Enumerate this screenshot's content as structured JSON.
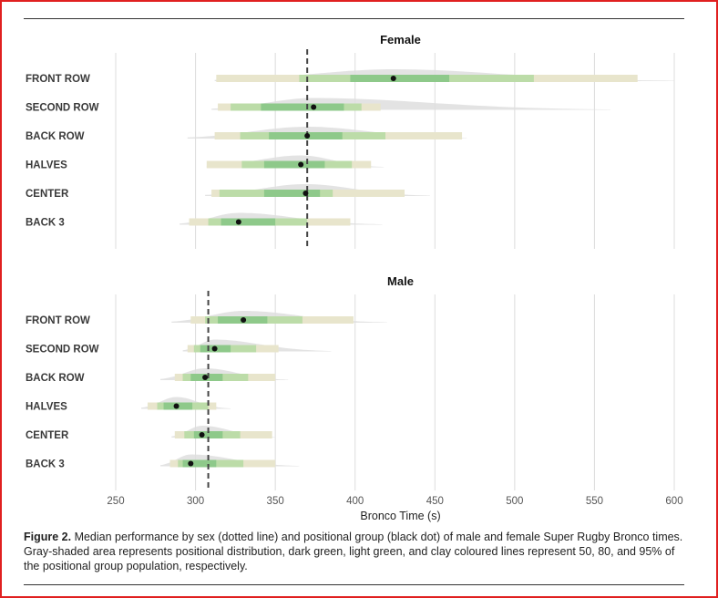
{
  "colors": {
    "band95": "#e8e5cc",
    "band80": "#bcdca8",
    "band50": "#8ec98a",
    "density": "#dedede",
    "median_line": "#444444",
    "dot": "#111111",
    "grid": "#dcdcdc"
  },
  "chart_data": {
    "type": "interval",
    "xlabel": "Bronco Time (s)",
    "xlim": [
      250,
      600
    ],
    "xticks": [
      250,
      300,
      350,
      400,
      450,
      500,
      550,
      600
    ],
    "panels": [
      {
        "title": "Female",
        "sex_median": 370,
        "groups": [
          {
            "name": "FRONT ROW",
            "median": 424,
            "range": [
              312,
              600
            ],
            "i95": [
              313,
              577
            ],
            "i80": [
              365,
              512
            ],
            "i50": [
              397,
              459
            ]
          },
          {
            "name": "SECOND ROW",
            "median": 374,
            "range": [
              310,
              560
            ],
            "i95": [
              314,
              416
            ],
            "i80": [
              322,
              404
            ],
            "i50": [
              341,
              393
            ]
          },
          {
            "name": "BACK ROW",
            "median": 370,
            "range": [
              295,
              470
            ],
            "i95": [
              312,
              467
            ],
            "i80": [
              328,
              419
            ],
            "i50": [
              346,
              392
            ]
          },
          {
            "name": "HALVES",
            "median": 366,
            "range": [
              307,
              418
            ],
            "i95": [
              307,
              410
            ],
            "i80": [
              329,
              398
            ],
            "i50": [
              343,
              381
            ]
          },
          {
            "name": "CENTER",
            "median": 369,
            "range": [
              306,
              447
            ],
            "i95": [
              310,
              431
            ],
            "i80": [
              315,
              386
            ],
            "i50": [
              343,
              378
            ]
          },
          {
            "name": "BACK 3",
            "median": 327,
            "range": [
              290,
              417
            ],
            "i95": [
              296,
              397
            ],
            "i80": [
              308,
              370
            ],
            "i50": [
              316,
              350
            ]
          }
        ]
      },
      {
        "title": "Male",
        "sex_median": 308,
        "groups": [
          {
            "name": "FRONT ROW",
            "median": 330,
            "range": [
              285,
              420
            ],
            "i95": [
              297,
              399
            ],
            "i80": [
              306,
              367
            ],
            "i50": [
              314,
              345
            ]
          },
          {
            "name": "SECOND ROW",
            "median": 312,
            "range": [
              292,
              385
            ],
            "i95": [
              295,
              352
            ],
            "i80": [
              299,
              338
            ],
            "i50": [
              303,
              322
            ]
          },
          {
            "name": "BACK ROW",
            "median": 306,
            "range": [
              278,
              358
            ],
            "i95": [
              287,
              350
            ],
            "i80": [
              292,
              333
            ],
            "i50": [
              297,
              317
            ]
          },
          {
            "name": "HALVES",
            "median": 288,
            "range": [
              266,
              322
            ],
            "i95": [
              270,
              313
            ],
            "i80": [
              276,
              308
            ],
            "i50": [
              280,
              298
            ]
          },
          {
            "name": "CENTER",
            "median": 304,
            "range": [
              285,
              350
            ],
            "i95": [
              287,
              348
            ],
            "i80": [
              293,
              328
            ],
            "i50": [
              299,
              317
            ]
          },
          {
            "name": "BACK 3",
            "median": 297,
            "range": [
              278,
              365
            ],
            "i95": [
              284,
              350
            ],
            "i80": [
              289,
              330
            ],
            "i50": [
              292,
              313
            ]
          }
        ]
      }
    ]
  },
  "caption": {
    "label": "Figure 2.",
    "text": " Median performance by sex (dotted line) and positional group (black dot) of male and female Super Rugby Bronco times. Gray-shaded area represents positional distribution, dark green, light green, and clay coloured lines represent 50, 80, and 95% of the positional group population, respectively."
  }
}
